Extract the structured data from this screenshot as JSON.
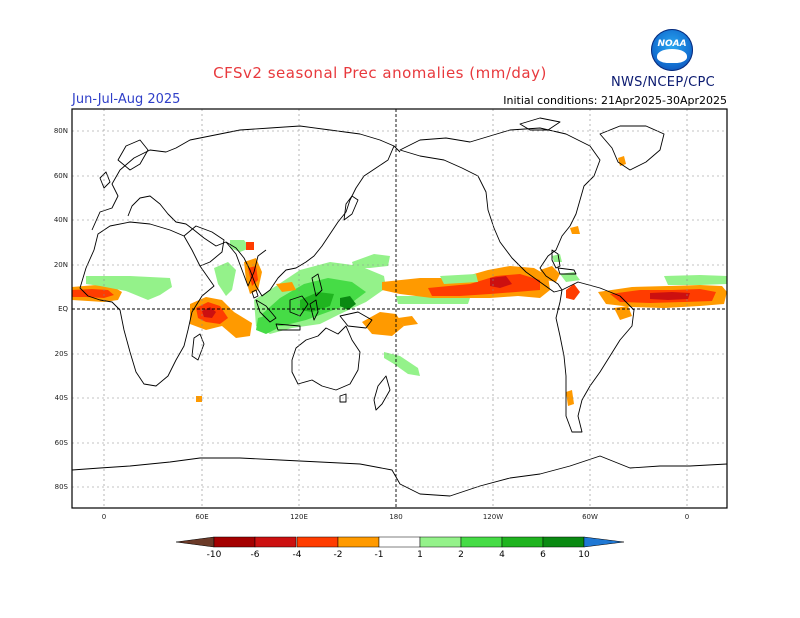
{
  "header": {
    "title": "CFSv2 seasonal Prec anomalies (mm/day)",
    "season": "Jun-Jul-Aug 2025",
    "initial_conditions": "Initial conditions: 21Apr2025-30Apr2025",
    "agency": "NWS/NCEP/CPC",
    "logo_text": "NOAA"
  },
  "map": {
    "lat_labels": [
      "80N",
      "60N",
      "40N",
      "20N",
      "EQ",
      "20S",
      "40S",
      "60S",
      "80S"
    ],
    "lon_labels": [
      "0",
      "60E",
      "120E",
      "180",
      "120W",
      "60W",
      "0"
    ],
    "projection": "cylindrical equidistant",
    "lon_range": [
      -20,
      380
    ],
    "lat_range": [
      -90,
      90
    ]
  },
  "colorbar": {
    "labels": [
      "-10",
      "-6",
      "-4",
      "-2",
      "-1",
      "1",
      "2",
      "4",
      "6",
      "10"
    ],
    "bins": [
      {
        "range": "<-10",
        "color": "#6b3a28"
      },
      {
        "range": "-10 to -6",
        "color": "#a40000"
      },
      {
        "range": "-6 to -4",
        "color": "#cc1010"
      },
      {
        "range": "-4 to -2",
        "color": "#ff3c00"
      },
      {
        "range": "-2 to -1",
        "color": "#ff9a00"
      },
      {
        "range": "-1 to 1",
        "color": "#ffffff"
      },
      {
        "range": "1 to 2",
        "color": "#94f28a"
      },
      {
        "range": "2 to 4",
        "color": "#46dc46"
      },
      {
        "range": "4 to 6",
        "color": "#1fb41f"
      },
      {
        "range": "6 to 10",
        "color": "#0a8a12"
      },
      {
        "range": ">10",
        "color": "#1f78d4"
      }
    ]
  }
}
